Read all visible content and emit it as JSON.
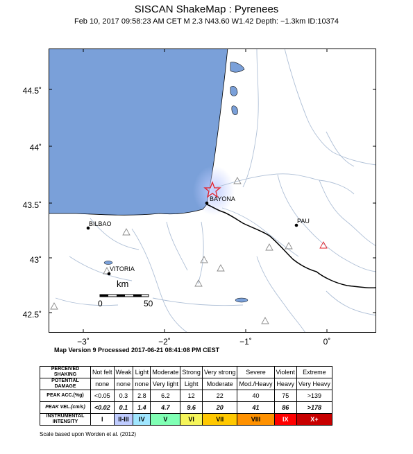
{
  "header": {
    "title": "SISCAN ShakeMap : Pyrenees",
    "subtitle": "Feb 10, 2017 09:58:23 AM CET   M 2.3   N43.60 W1.42   Depth: −1.3km   ID:10374"
  },
  "map": {
    "lat_labels": [
      "44.5˚",
      "44˚",
      "43.5˚",
      "43˚",
      "42.5˚"
    ],
    "lon_labels": [
      "−3˚",
      "−2˚",
      "−1˚",
      "0˚"
    ],
    "cities": [
      "BAYONA",
      "BILBAO",
      "PAU",
      "VITORIA"
    ],
    "scalebar": {
      "unit": "km",
      "min": "0",
      "max": "50"
    },
    "epicenter": {
      "lat": 43.6,
      "lon": -1.42
    },
    "colors": {
      "sea": "#7aa0d9",
      "land": "#ffffff",
      "rivers": "#aebfd6",
      "border": "#000000",
      "star": "#e3202a"
    }
  },
  "version_note": "Map Version 9 Processed 2017-06-21 08:41:08 PM CEST",
  "legend": {
    "shaking_label": "PERCEIVED SHAKING",
    "damage_label": "POTENTIAL DAMAGE",
    "acc_label": "PEAK ACC.(%g)",
    "vel_label": "PEAK VEL.(cm/s)",
    "intensity_label": "INSTRUMENTAL INTENSITY",
    "shaking": [
      "Not felt",
      "Weak",
      "Light",
      "Moderate",
      "Strong",
      "Very strong",
      "Severe",
      "Violent",
      "Extreme"
    ],
    "damage": [
      "none",
      "none",
      "none",
      "Very light",
      "Light",
      "Moderate",
      "Mod./Heavy",
      "Heavy",
      "Very Heavy"
    ],
    "acc": [
      "<0.05",
      "0.3",
      "2.8",
      "6.2",
      "12",
      "22",
      "40",
      "75",
      ">139"
    ],
    "vel": [
      "<0.02",
      "0.1",
      "1.4",
      "4.7",
      "9.6",
      "20",
      "41",
      "86",
      ">178"
    ],
    "intensity": [
      "I",
      "II-III",
      "IV",
      "V",
      "VI",
      "VII",
      "VIII",
      "IX",
      "X+"
    ],
    "intensity_colors": [
      "#ffffff",
      "#bfccff",
      "#a0e6ff",
      "#80ffb4",
      "#f5f55a",
      "#ffc800",
      "#ff9100",
      "#ff0000",
      "#c80000"
    ]
  },
  "scale_note": "Scale based upon Worden et al. (2012)"
}
